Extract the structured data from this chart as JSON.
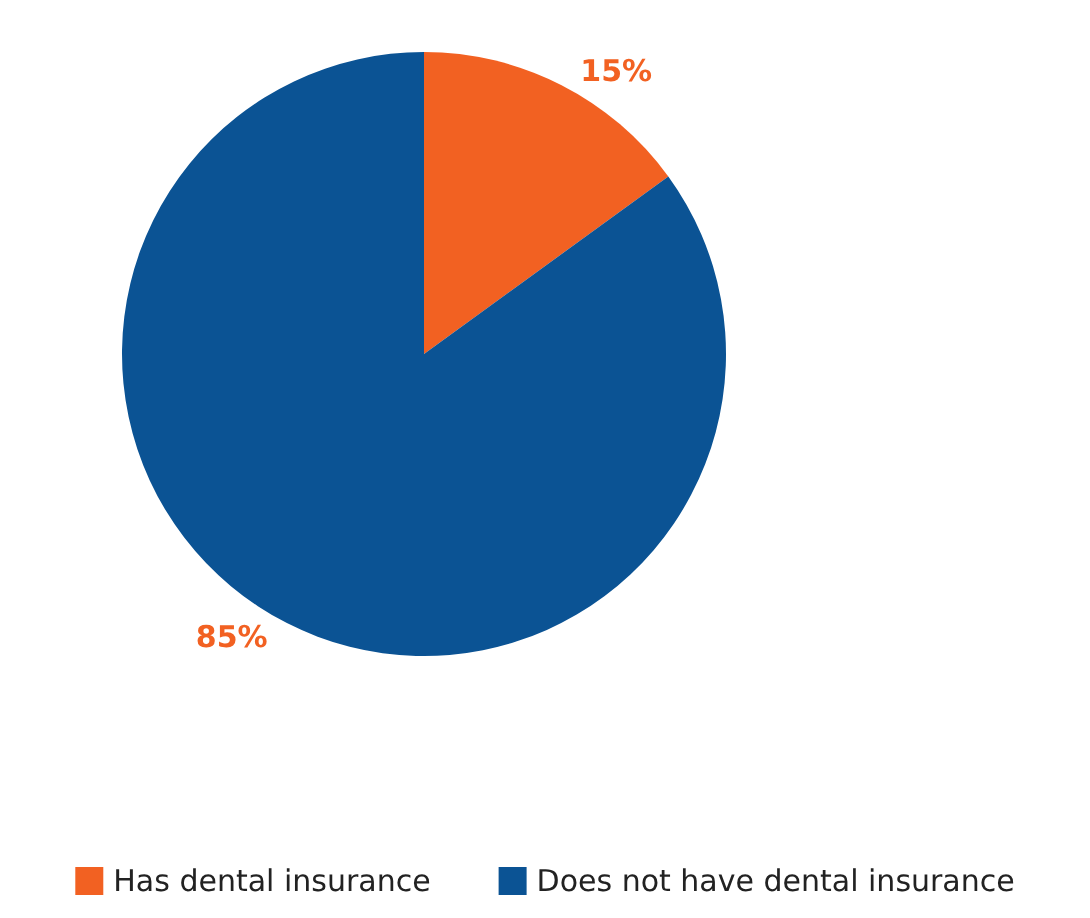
{
  "chart_data": {
    "type": "pie",
    "categories": [
      "Has dental insurance",
      "Does not have dental insurance"
    ],
    "values": [
      15,
      85
    ],
    "colors": [
      "#f26122",
      "#0b5394"
    ],
    "value_labels": [
      "15%",
      "85%"
    ],
    "legend": "bottom"
  }
}
